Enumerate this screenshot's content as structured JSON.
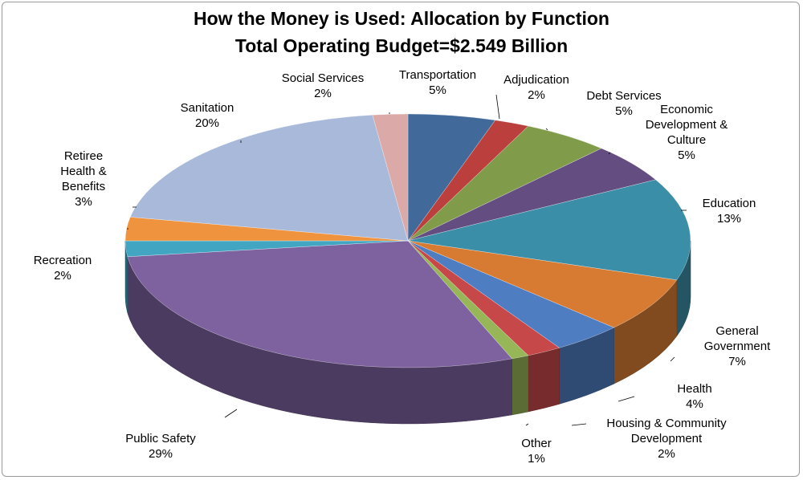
{
  "chart_data": {
    "type": "pie",
    "title": "How the Money is Used: Allocation by Function",
    "subtitle": "Total Operating Budget=$2.549 Billion",
    "categories": [
      "Transportation",
      "Adjudication",
      "Debt Services",
      "Economic Development & Culture",
      "Education",
      "General Government",
      "Health",
      "Housing & Community Development",
      "Other",
      "Public Safety",
      "Recreation",
      "Retiree Health & Benefits",
      "Sanitation",
      "Social Services"
    ],
    "values": [
      5,
      2,
      5,
      5,
      13,
      7,
      4,
      2,
      1,
      29,
      2,
      3,
      20,
      2
    ],
    "value_labels": [
      "5%",
      "2%",
      "5%",
      "5%",
      "13%",
      "7%",
      "4%",
      "2%",
      "1%",
      "29%",
      "2%",
      "3%",
      "20%",
      "2%"
    ],
    "colors": [
      "#41699a",
      "#bb3f3c",
      "#809b4a",
      "#644d80",
      "#3a8ea7",
      "#d77b33",
      "#4e7dc2",
      "#c64849",
      "#97b657",
      "#7e62a0",
      "#42a6c3",
      "#f0933e",
      "#a9b9da",
      "#dba9a8"
    ]
  }
}
